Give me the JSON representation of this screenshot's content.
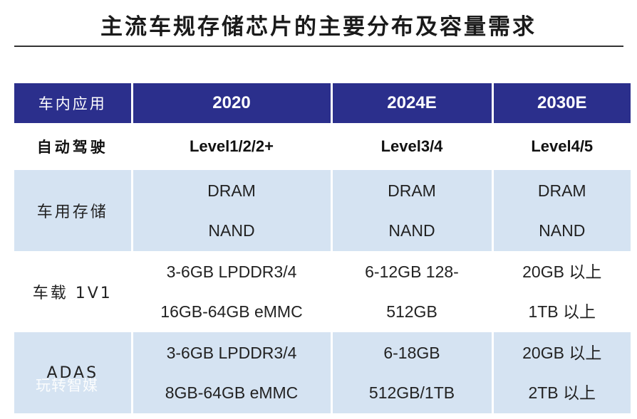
{
  "title": "主流车规存储芯片的主要分布及容量需求",
  "table": {
    "headers": [
      "车内应用",
      "2020",
      "2024E",
      "2030E"
    ],
    "rows": [
      {
        "label": "自动驾驶",
        "cells": [
          [
            "Level1/2/2+"
          ],
          [
            "Level3/4"
          ],
          [
            "Level4/5"
          ]
        ]
      },
      {
        "label": "车用存储",
        "cells": [
          [
            "DRAM",
            "NAND"
          ],
          [
            "DRAM",
            "NAND"
          ],
          [
            "DRAM",
            "NAND"
          ]
        ]
      },
      {
        "label": "车载 1V1",
        "cells": [
          [
            "3-6GB LPDDR3/4",
            "16GB-64GB eMMC"
          ],
          [
            "6-12GB 128-",
            "512GB"
          ],
          [
            "20GB 以上",
            "1TB 以上"
          ]
        ]
      },
      {
        "label": "ADAS",
        "cells": [
          [
            "3-6GB LPDDR3/4",
            "8GB-64GB eMMC"
          ],
          [
            "6-18GB",
            "512GB/1TB"
          ],
          [
            "20GB 以上",
            "2TB 以上"
          ]
        ]
      }
    ]
  },
  "watermark": "玩转智媒"
}
